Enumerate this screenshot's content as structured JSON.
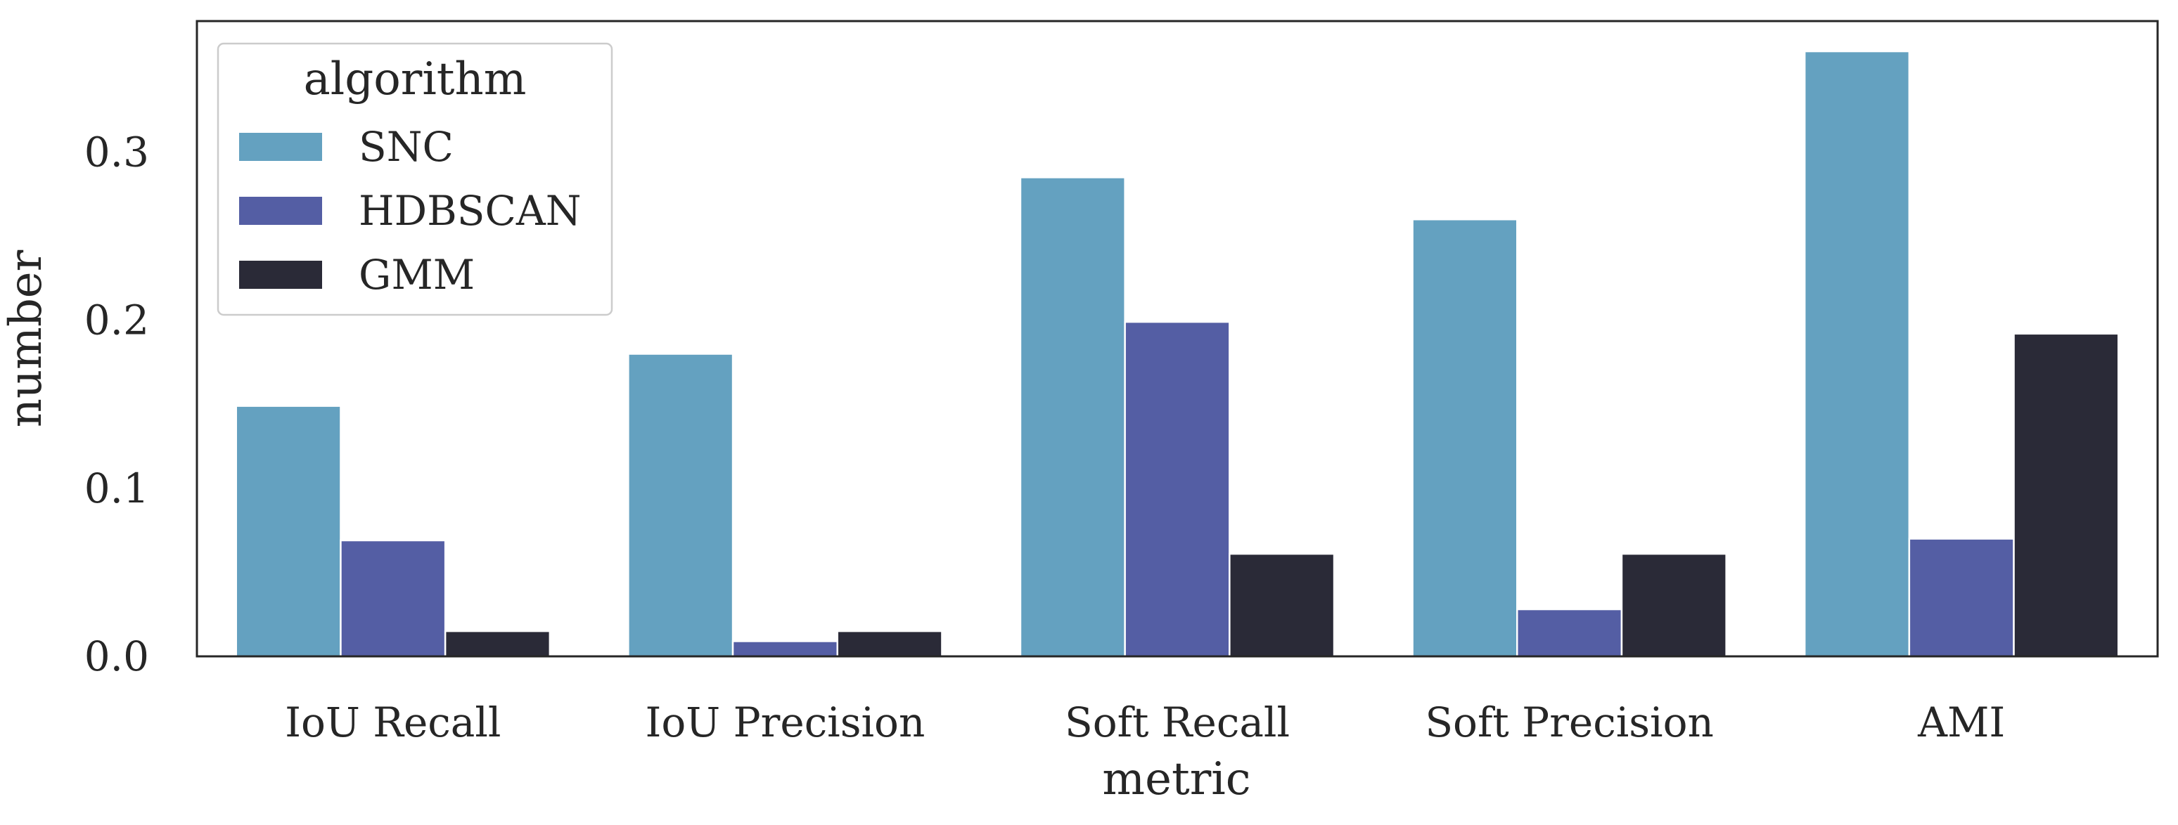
{
  "chart_data": {
    "type": "bar",
    "xlabel": "metric",
    "ylabel": "number",
    "ylim": [
      0,
      0.378
    ],
    "yticks": [
      "0.0",
      "0.1",
      "0.2",
      "0.3"
    ],
    "categories": [
      "IoU Recall",
      "IoU Precision",
      "Soft Recall",
      "Soft Precision",
      "AMI"
    ],
    "series": [
      {
        "name": "SNC",
        "color": "#64a1c0",
        "values": [
          0.149,
          0.18,
          0.285,
          0.26,
          0.36
        ]
      },
      {
        "name": "HDBSCAN",
        "color": "#545ea4",
        "values": [
          0.069,
          0.009,
          0.199,
          0.028,
          0.07
        ]
      },
      {
        "name": "GMM",
        "color": "#2a2a37",
        "values": [
          0.015,
          0.015,
          0.061,
          0.061,
          0.192
        ]
      }
    ],
    "legend": {
      "title": "algorithm",
      "position": "top-left"
    },
    "grid": false
  }
}
